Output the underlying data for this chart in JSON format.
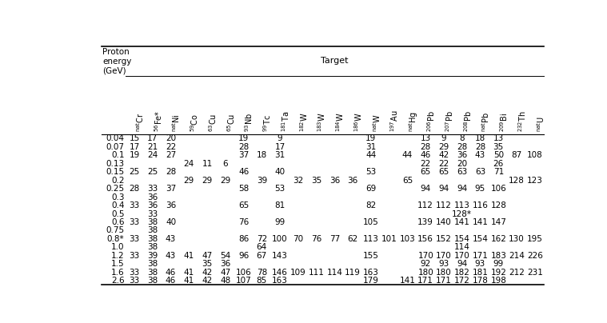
{
  "col_labels": [
    {
      "pre": "nat",
      "el": "Cr",
      "post": ""
    },
    {
      "pre": "56",
      "el": "Fe",
      "post": "*"
    },
    {
      "pre": "nat",
      "el": "Ni",
      "post": ""
    },
    {
      "pre": "59",
      "el": "Co",
      "post": ""
    },
    {
      "pre": "63",
      "el": "Cu",
      "post": ""
    },
    {
      "pre": "65",
      "el": "Cu",
      "post": ""
    },
    {
      "pre": "93",
      "el": "Nb",
      "post": ""
    },
    {
      "pre": "99",
      "el": "Tc",
      "post": ""
    },
    {
      "pre": "181",
      "el": "Ta",
      "post": ""
    },
    {
      "pre": "182",
      "el": "W",
      "post": ""
    },
    {
      "pre": "183",
      "el": "W",
      "post": ""
    },
    {
      "pre": "184",
      "el": "W",
      "post": ""
    },
    {
      "pre": "186",
      "el": "W",
      "post": ""
    },
    {
      "pre": "nat",
      "el": "W",
      "post": ""
    },
    {
      "pre": "197",
      "el": "Au",
      "post": ""
    },
    {
      "pre": "nat",
      "el": "Hg",
      "post": ""
    },
    {
      "pre": "206",
      "el": "Pb",
      "post": ""
    },
    {
      "pre": "207",
      "el": "Pb",
      "post": ""
    },
    {
      "pre": "208",
      "el": "Pb",
      "post": ""
    },
    {
      "pre": "nat",
      "el": "Pb",
      "post": ""
    },
    {
      "pre": "209",
      "el": "Bi",
      "post": ""
    },
    {
      "pre": "232",
      "el": "Th",
      "post": ""
    },
    {
      "pre": "nat",
      "el": "U",
      "post": ""
    }
  ],
  "energies": [
    "0.04",
    "0.07",
    "0.1",
    "0.13",
    "0.15",
    "0.2",
    "0.25",
    "0.3",
    "0.4",
    "0.5",
    "0.6",
    "0.75",
    "0.8*",
    "1.0",
    "1.2",
    "1.5",
    "1.6",
    "2.6"
  ],
  "data": {
    "0.04": [
      "15",
      "17",
      "20",
      "",
      "",
      "",
      "19",
      "",
      "9",
      "",
      "",
      "",
      "",
      "19",
      "",
      "",
      "13",
      "9",
      "8",
      "18",
      "13",
      "",
      ""
    ],
    "0.07": [
      "17",
      "21",
      "22",
      "",
      "",
      "",
      "28",
      "",
      "17",
      "",
      "",
      "",
      "",
      "31",
      "",
      "",
      "28",
      "29",
      "28",
      "28",
      "35",
      "",
      ""
    ],
    "0.1": [
      "19",
      "24",
      "27",
      "",
      "",
      "",
      "37",
      "18",
      "31",
      "",
      "",
      "",
      "",
      "44",
      "",
      "44",
      "46",
      "42",
      "36",
      "43",
      "50",
      "87",
      "108"
    ],
    "0.13": [
      "",
      "",
      "",
      "24",
      "11",
      "6",
      "",
      "",
      "",
      "",
      "",
      "",
      "",
      "",
      "",
      "",
      "22",
      "22",
      "20",
      "",
      "26",
      "",
      ""
    ],
    "0.15": [
      "25",
      "25",
      "28",
      "",
      "",
      "",
      "46",
      "",
      "40",
      "",
      "",
      "",
      "",
      "53",
      "",
      "",
      "65",
      "65",
      "63",
      "63",
      "71",
      "",
      ""
    ],
    "0.2": [
      "",
      "",
      "",
      "29",
      "29",
      "29",
      "",
      "39",
      "",
      "32",
      "35",
      "36",
      "36",
      "",
      "",
      "65",
      "",
      "",
      "",
      "",
      "",
      "128",
      "123"
    ],
    "0.25": [
      "28",
      "33",
      "37",
      "",
      "",
      "",
      "58",
      "",
      "53",
      "",
      "",
      "",
      "",
      "69",
      "",
      "",
      "94",
      "94",
      "94",
      "95",
      "106",
      "",
      ""
    ],
    "0.3": [
      "",
      "36",
      "",
      "",
      "",
      "",
      "",
      "",
      "",
      "",
      "",
      "",
      "",
      "",
      "",
      "",
      "",
      "",
      "",
      "",
      "",
      "",
      ""
    ],
    "0.4": [
      "33",
      "36",
      "36",
      "",
      "",
      "",
      "65",
      "",
      "81",
      "",
      "",
      "",
      "",
      "82",
      "",
      "",
      "112",
      "112",
      "113",
      "116",
      "128",
      "",
      ""
    ],
    "0.5": [
      "",
      "33",
      "",
      "",
      "",
      "",
      "",
      "",
      "",
      "",
      "",
      "",
      "",
      "",
      "",
      "",
      "",
      "",
      "128*",
      "",
      "",
      "",
      ""
    ],
    "0.6": [
      "33",
      "38",
      "40",
      "",
      "",
      "",
      "76",
      "",
      "99",
      "",
      "",
      "",
      "",
      "105",
      "",
      "",
      "139",
      "140",
      "141",
      "141",
      "147",
      "",
      ""
    ],
    "0.75": [
      "",
      "38",
      "",
      "",
      "",
      "",
      "",
      "",
      "",
      "",
      "",
      "",
      "",
      "",
      "",
      "",
      "",
      "",
      "",
      "",
      "",
      "",
      ""
    ],
    "0.8*": [
      "33",
      "38",
      "43",
      "",
      "",
      "",
      "86",
      "72",
      "100",
      "70",
      "76",
      "77",
      "62",
      "113",
      "101",
      "103",
      "156",
      "152",
      "154",
      "154",
      "162",
      "130",
      "195"
    ],
    "1.0": [
      "",
      "38",
      "",
      "",
      "",
      "",
      "",
      "64",
      "",
      "",
      "",
      "",
      "",
      "",
      "",
      "",
      "",
      "",
      "114",
      "",
      "",
      "",
      ""
    ],
    "1.2": [
      "33",
      "39",
      "43",
      "41",
      "47",
      "54",
      "96",
      "67",
      "143",
      "",
      "",
      "",
      "",
      "155",
      "",
      "",
      "170",
      "170",
      "170",
      "171",
      "183",
      "214",
      "226"
    ],
    "1.5": [
      "",
      "38",
      "",
      "",
      "35",
      "36",
      "",
      "",
      "",
      "",
      "",
      "",
      "",
      "",
      "",
      "",
      "92",
      "93",
      "94",
      "93",
      "99",
      "",
      ""
    ],
    "1.6": [
      "33",
      "38",
      "46",
      "41",
      "42",
      "47",
      "106",
      "78",
      "146",
      "109",
      "111",
      "114",
      "119",
      "163",
      "",
      "",
      "180",
      "180",
      "182",
      "181",
      "192",
      "212",
      "231"
    ],
    "2.6": [
      "33",
      "38",
      "46",
      "41",
      "42",
      "48",
      "107",
      "85",
      "163",
      "",
      "",
      "",
      "",
      "179",
      "",
      "141",
      "171",
      "171",
      "172",
      "178",
      "198",
      "",
      ""
    ]
  },
  "bg_color": "#ffffff",
  "text_color": "#000000",
  "font_size": 7.5
}
